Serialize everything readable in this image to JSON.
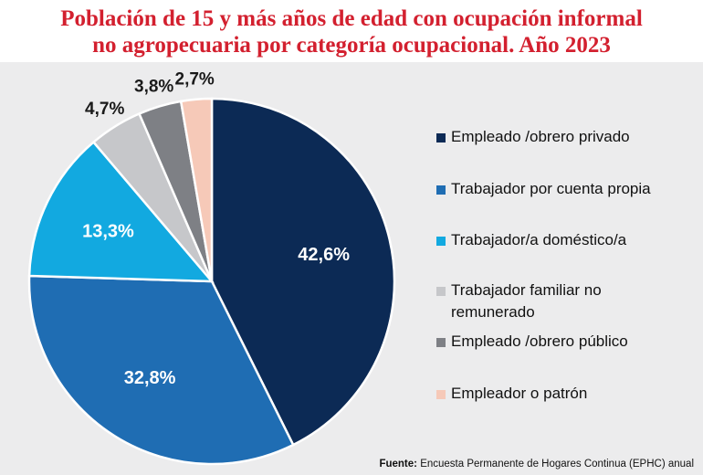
{
  "title_line1": "Población de 15 y más años de edad con ocupación informal",
  "title_line2": "no agropecuaria por categoría ocupacional. Año 2023",
  "source_label": "Fuente:",
  "source_text": "Encuesta Permanente de Hogares Continua (EPHC) anual",
  "chart_data": {
    "type": "pie",
    "title": "Población de 15 y más años de edad con ocupación informal no agropecuaria por categoría ocupacional. Año 2023",
    "legend_position": "right",
    "slices": [
      {
        "name": "Empleado /obrero privado",
        "value": 42.6,
        "label": "42,6%",
        "color": "#0c2a55"
      },
      {
        "name": "Trabajador por cuenta propia",
        "value": 32.8,
        "label": "32,8%",
        "color": "#1f6db3"
      },
      {
        "name": "Trabajador/a doméstico/a",
        "value": 13.3,
        "label": "13,3%",
        "color": "#12a9e0"
      },
      {
        "name": "Trabajador familiar no remunerado",
        "value": 4.7,
        "label": "4,7%",
        "color": "#c6c7ca"
      },
      {
        "name": "Empleado /obrero público",
        "value": 3.8,
        "label": "3,8%",
        "color": "#7e8085"
      },
      {
        "name": "Empleador o patrón",
        "value": 2.7,
        "label": "2,7%",
        "color": "#f6c9b8"
      }
    ]
  }
}
